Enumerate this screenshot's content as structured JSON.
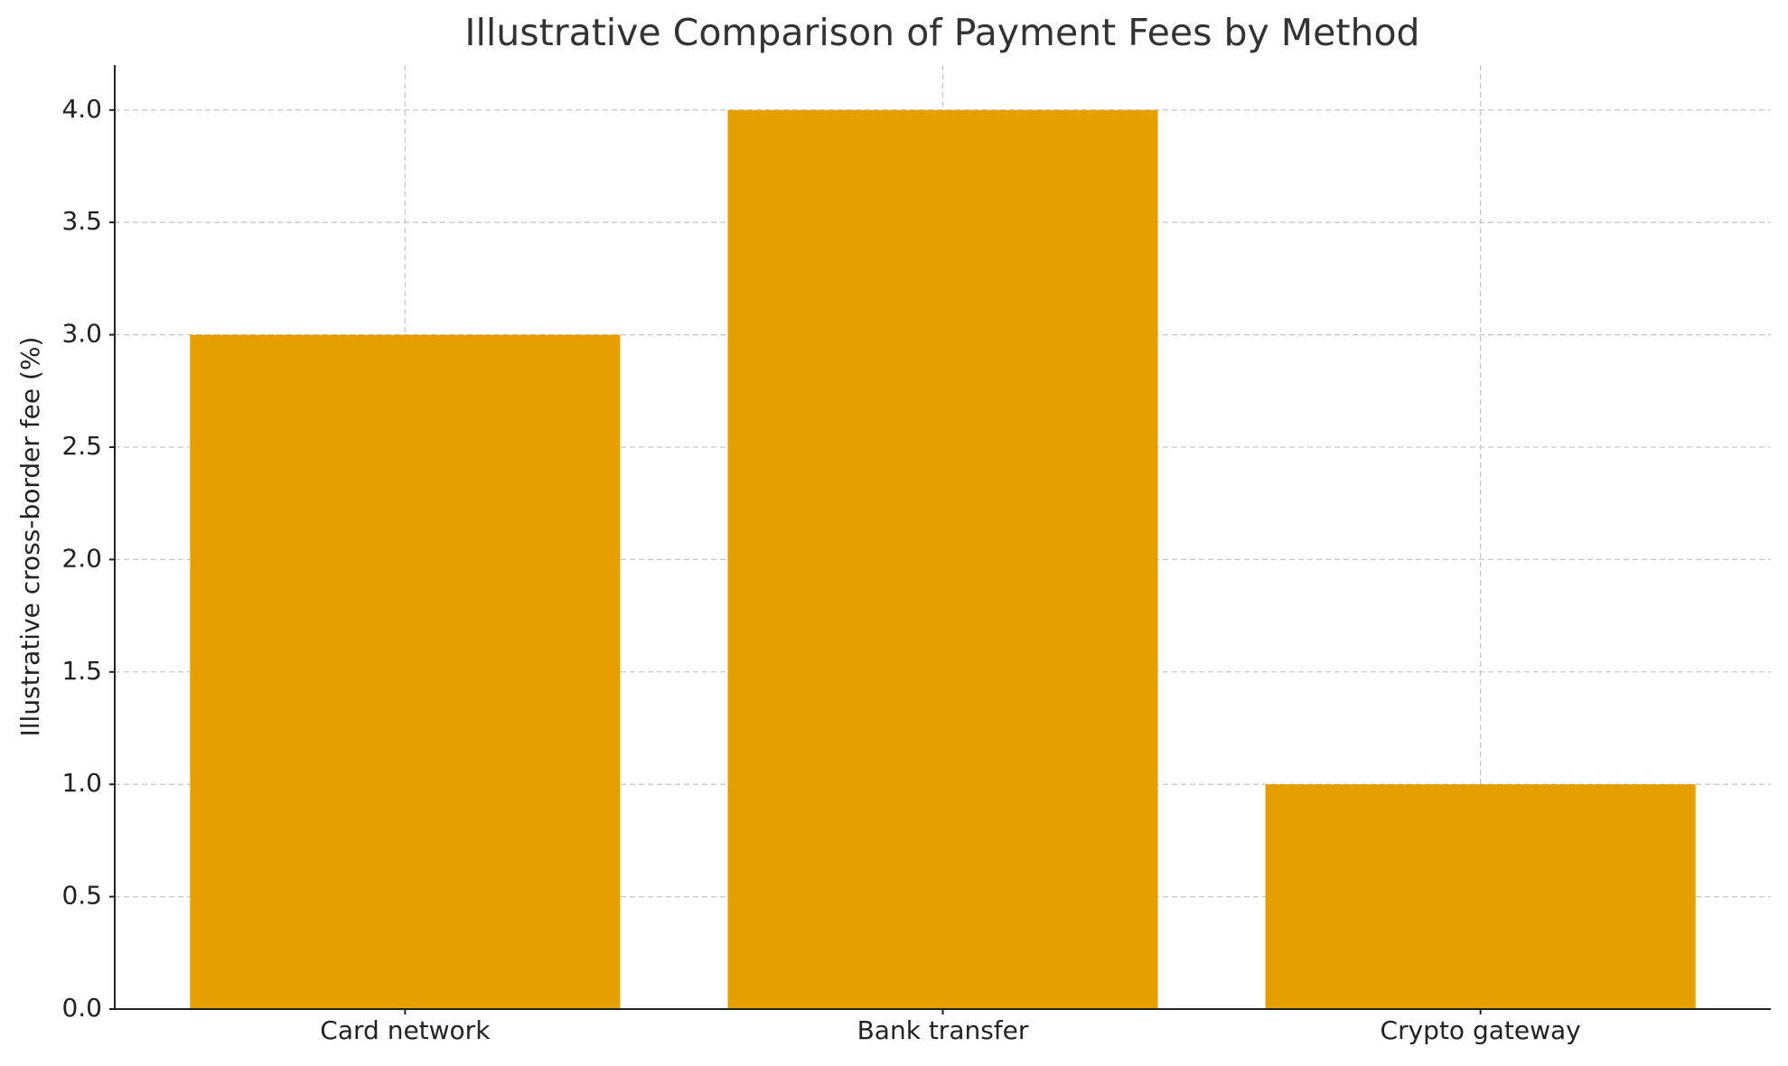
{
  "chart_data": {
    "type": "bar",
    "title": "Illustrative Comparison of Payment Fees by Method",
    "y_label": "Illustrative cross-border fee (%)",
    "categories": [
      "Card network",
      "Bank transfer",
      "Crypto gateway"
    ],
    "values": [
      3.0,
      4.0,
      1.0
    ],
    "color": "#e69f00",
    "ylim": [
      0,
      4.2
    ],
    "yticks": [
      {
        "value": 0,
        "label": "0.0"
      },
      {
        "value": 0.5,
        "label": "0.5"
      },
      {
        "value": 1,
        "label": "1.0"
      },
      {
        "value": 1.5,
        "label": "1.5"
      },
      {
        "value": 2,
        "label": "2.0"
      },
      {
        "value": 2.5,
        "label": "2.5"
      },
      {
        "value": 3,
        "label": "3.0"
      },
      {
        "value": 3.5,
        "label": "3.5"
      },
      {
        "value": 4,
        "label": "4.0"
      }
    ],
    "grid": true
  }
}
